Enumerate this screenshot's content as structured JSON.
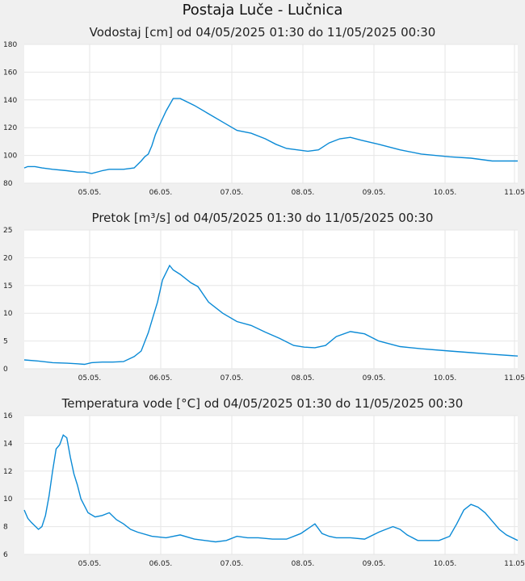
{
  "page": {
    "title": "Postaja Luče - Lučnica"
  },
  "colors": {
    "background": "#f0f0f0",
    "plot": "#ffffff",
    "line": "#0a8ad6",
    "grid": "#e6e6e6"
  },
  "chart_data": [
    {
      "type": "line",
      "title": "Vodostaj [cm] od 04/05/2025 01:30 do 11/05/2025 00:30",
      "xlabel": "",
      "ylabel": "",
      "x_ticks": [
        "05.05.",
        "06.05.",
        "07.05.",
        "08.05.",
        "09.05.",
        "10.05.",
        "11.05"
      ],
      "x_range": [
        0,
        6.96
      ],
      "ylim": [
        80,
        180
      ],
      "y_ticks": [
        80,
        100,
        120,
        140,
        160,
        180
      ],
      "grid": true,
      "series": [
        {
          "x": [
            0,
            0.05,
            0.15,
            0.25,
            0.4,
            0.6,
            0.75,
            0.85,
            0.95,
            1.1,
            1.2,
            1.3,
            1.4,
            1.55,
            1.65,
            1.7,
            1.75,
            1.8,
            1.85,
            1.9,
            2.0,
            2.1,
            2.2,
            2.4,
            2.6,
            2.8,
            3.0,
            3.2,
            3.4,
            3.55,
            3.7,
            3.85,
            4.0,
            4.15,
            4.3,
            4.45,
            4.6,
            4.75,
            5.0,
            5.3,
            5.6,
            6.0,
            6.3,
            6.6,
            6.96
          ],
          "y": [
            91,
            92,
            92,
            91,
            90,
            89,
            88,
            88,
            87,
            89,
            90,
            90,
            90,
            91,
            96,
            99,
            101,
            107,
            115,
            121,
            132,
            141,
            141,
            136,
            130,
            124,
            118,
            116,
            112,
            108,
            105,
            104,
            103,
            104,
            109,
            112,
            113,
            111,
            108,
            104,
            101,
            99,
            98,
            96,
            96
          ]
        }
      ]
    },
    {
      "type": "line",
      "title": "Pretok [m³/s] od 04/05/2025 01:30 do 11/05/2025 00:30",
      "xlabel": "",
      "ylabel": "",
      "x_ticks": [
        "05.05.",
        "06.05.",
        "07.05.",
        "08.05.",
        "09.05.",
        "10.05.",
        "11.05"
      ],
      "x_range": [
        0,
        6.96
      ],
      "ylim": [
        0,
        25
      ],
      "y_ticks": [
        0,
        5,
        10,
        15,
        20,
        25
      ],
      "grid": true,
      "series": [
        {
          "x": [
            0,
            0.2,
            0.4,
            0.6,
            0.75,
            0.85,
            0.95,
            1.1,
            1.25,
            1.4,
            1.55,
            1.65,
            1.75,
            1.82,
            1.88,
            1.95,
            2.05,
            2.1,
            2.2,
            2.35,
            2.45,
            2.6,
            2.8,
            3.0,
            3.2,
            3.4,
            3.6,
            3.8,
            3.95,
            4.1,
            4.25,
            4.4,
            4.6,
            4.8,
            5.0,
            5.3,
            5.6,
            6.0,
            6.3,
            6.6,
            6.96
          ],
          "y": [
            1.6,
            1.4,
            1.1,
            1.0,
            0.9,
            0.8,
            1.1,
            1.2,
            1.2,
            1.3,
            2.2,
            3.2,
            6.5,
            9.5,
            12,
            16,
            18.6,
            17.8,
            17.0,
            15.5,
            14.8,
            12,
            10,
            8.5,
            7.8,
            6.6,
            5.5,
            4.2,
            3.9,
            3.8,
            4.2,
            5.8,
            6.7,
            6.3,
            5.0,
            4.0,
            3.6,
            3.2,
            2.9,
            2.6,
            2.3
          ]
        }
      ]
    },
    {
      "type": "line",
      "title": "Temperatura vode [°C] od 04/05/2025 01:30 do 11/05/2025 00:30",
      "xlabel": "",
      "ylabel": "",
      "x_ticks": [
        "05.05.",
        "06.05.",
        "07.05.",
        "08.05.",
        "09.05.",
        "10.05.",
        "11.05"
      ],
      "x_range": [
        0,
        6.96
      ],
      "ylim": [
        6,
        16
      ],
      "y_ticks": [
        6,
        8,
        10,
        12,
        14,
        16
      ],
      "grid": true,
      "series": [
        {
          "x": [
            0,
            0.05,
            0.1,
            0.2,
            0.25,
            0.3,
            0.35,
            0.4,
            0.45,
            0.5,
            0.55,
            0.6,
            0.65,
            0.7,
            0.75,
            0.8,
            0.9,
            1.0,
            1.1,
            1.2,
            1.3,
            1.4,
            1.5,
            1.6,
            1.8,
            2.0,
            2.2,
            2.4,
            2.55,
            2.7,
            2.85,
            3.0,
            3.15,
            3.3,
            3.5,
            3.7,
            3.9,
            4.1,
            4.2,
            4.3,
            4.4,
            4.6,
            4.8,
            5.0,
            5.1,
            5.2,
            5.3,
            5.4,
            5.55,
            5.7,
            5.85,
            6.0,
            6.1,
            6.2,
            6.3,
            6.4,
            6.5,
            6.6,
            6.7,
            6.8,
            6.96
          ],
          "y": [
            9.2,
            8.6,
            8.3,
            7.8,
            8.0,
            8.8,
            10.2,
            12.0,
            13.6,
            13.9,
            14.6,
            14.4,
            13.0,
            11.8,
            11.0,
            10.0,
            9.0,
            8.7,
            8.8,
            9.0,
            8.5,
            8.2,
            7.8,
            7.6,
            7.3,
            7.2,
            7.4,
            7.1,
            7.0,
            6.9,
            7.0,
            7.3,
            7.2,
            7.2,
            7.1,
            7.1,
            7.5,
            8.2,
            7.5,
            7.3,
            7.2,
            7.2,
            7.1,
            7.6,
            7.8,
            8.0,
            7.8,
            7.4,
            7.0,
            7.0,
            7.0,
            7.3,
            8.2,
            9.2,
            9.6,
            9.4,
            9.0,
            8.4,
            7.8,
            7.4,
            7.0
          ]
        }
      ]
    }
  ]
}
